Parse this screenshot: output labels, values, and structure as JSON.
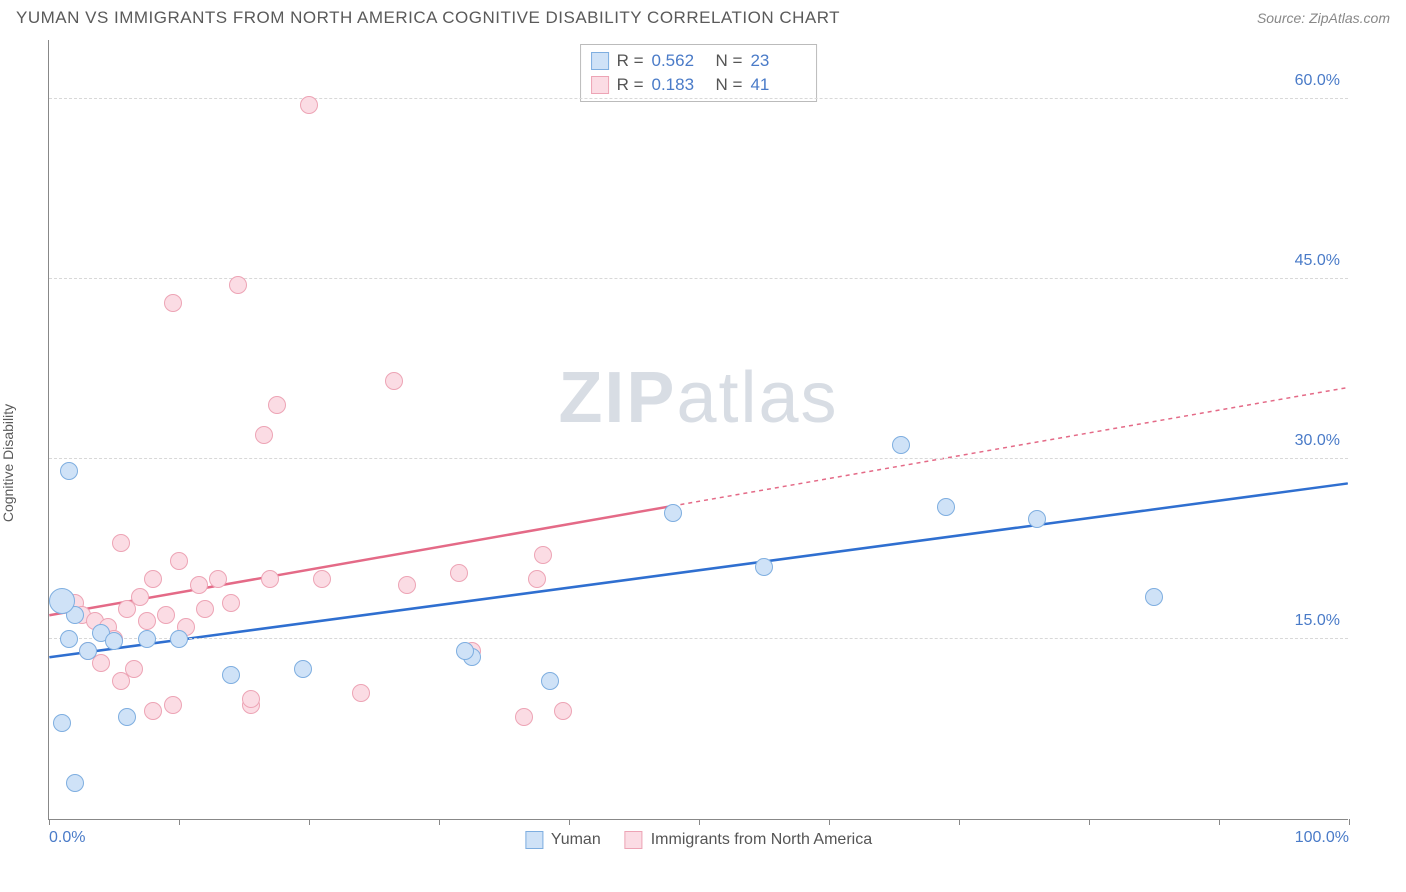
{
  "title": "YUMAN VS IMMIGRANTS FROM NORTH AMERICA COGNITIVE DISABILITY CORRELATION CHART",
  "source_label": "Source:",
  "source_name": "ZipAtlas.com",
  "ylabel": "Cognitive Disability",
  "watermark_a": "ZIP",
  "watermark_b": "atlas",
  "chart": {
    "type": "scatter",
    "xlim": [
      0,
      100
    ],
    "ylim": [
      0,
      65
    ],
    "x_ticks": [
      0,
      10,
      20,
      30,
      40,
      50,
      60,
      70,
      80,
      90,
      100
    ],
    "x_tick_labels": {
      "0": "0.0%",
      "100": "100.0%"
    },
    "y_ticks": [
      15,
      30,
      45,
      60
    ],
    "y_tick_labels": [
      "15.0%",
      "30.0%",
      "45.0%",
      "60.0%"
    ],
    "grid_color": "#d8d8d8",
    "axis_color": "#888888",
    "tick_label_color": "#4a7bc8",
    "series": [
      {
        "key": "yuman",
        "label": "Yuman",
        "color_fill": "#cfe2f7",
        "color_stroke": "#7eaee0",
        "line_color": "#2f6fd0",
        "line_dash_to_x": 100,
        "R": "0.562",
        "N": "23",
        "marker_r": 9,
        "regression": {
          "x1": 0,
          "y1": 13.5,
          "x2": 100,
          "y2": 28.0
        },
        "points": [
          {
            "x": 1.5,
            "y": 29.0
          },
          {
            "x": 2.0,
            "y": 3.0
          },
          {
            "x": 1.0,
            "y": 8.0
          },
          {
            "x": 1.5,
            "y": 15.0
          },
          {
            "x": 2.0,
            "y": 17.0
          },
          {
            "x": 3.0,
            "y": 14.0
          },
          {
            "x": 4.0,
            "y": 15.5
          },
          {
            "x": 5.0,
            "y": 14.8
          },
          {
            "x": 6.0,
            "y": 8.5
          },
          {
            "x": 7.5,
            "y": 15.0
          },
          {
            "x": 10.0,
            "y": 15.0
          },
          {
            "x": 14.0,
            "y": 12.0
          },
          {
            "x": 19.5,
            "y": 12.5
          },
          {
            "x": 32.5,
            "y": 13.5
          },
          {
            "x": 32.0,
            "y": 14.0
          },
          {
            "x": 38.5,
            "y": 11.5
          },
          {
            "x": 48.0,
            "y": 25.5
          },
          {
            "x": 55.0,
            "y": 21.0
          },
          {
            "x": 65.5,
            "y": 31.2
          },
          {
            "x": 69.0,
            "y": 26.0
          },
          {
            "x": 76.0,
            "y": 25.0
          },
          {
            "x": 85.0,
            "y": 18.5
          },
          {
            "x": 1.0,
            "y": 18.2,
            "r": 13
          }
        ]
      },
      {
        "key": "imm",
        "label": "Immigrants from North America",
        "color_fill": "#fbdce4",
        "color_stroke": "#eda4b5",
        "line_color": "#e46a87",
        "line_dash_to_x": 48,
        "R": "0.183",
        "N": "41",
        "marker_r": 9,
        "regression": {
          "x1": 0,
          "y1": 17.0,
          "x2": 100,
          "y2": 36.0
        },
        "points": [
          {
            "x": 20.0,
            "y": 59.5
          },
          {
            "x": 9.5,
            "y": 43.0
          },
          {
            "x": 14.5,
            "y": 44.5
          },
          {
            "x": 16.5,
            "y": 32.0
          },
          {
            "x": 17.5,
            "y": 34.5
          },
          {
            "x": 26.5,
            "y": 36.5
          },
          {
            "x": 2.0,
            "y": 18.0
          },
          {
            "x": 2.5,
            "y": 17.0
          },
          {
            "x": 3.0,
            "y": 14.0
          },
          {
            "x": 3.5,
            "y": 16.5
          },
          {
            "x": 4.0,
            "y": 13.0
          },
          {
            "x": 4.5,
            "y": 16.0
          },
          {
            "x": 5.0,
            "y": 15.0
          },
          {
            "x": 5.5,
            "y": 23.0
          },
          {
            "x": 5.5,
            "y": 11.5
          },
          {
            "x": 6.0,
            "y": 17.5
          },
          {
            "x": 6.5,
            "y": 12.5
          },
          {
            "x": 7.0,
            "y": 18.5
          },
          {
            "x": 7.5,
            "y": 16.5
          },
          {
            "x": 8.0,
            "y": 20.0
          },
          {
            "x": 8.0,
            "y": 9.0
          },
          {
            "x": 9.0,
            "y": 17.0
          },
          {
            "x": 9.5,
            "y": 9.5
          },
          {
            "x": 10.0,
            "y": 21.5
          },
          {
            "x": 10.5,
            "y": 16.0
          },
          {
            "x": 11.5,
            "y": 19.5
          },
          {
            "x": 12.0,
            "y": 17.5
          },
          {
            "x": 13.0,
            "y": 20.0
          },
          {
            "x": 14.0,
            "y": 18.0
          },
          {
            "x": 15.5,
            "y": 9.5
          },
          {
            "x": 15.5,
            "y": 10.0
          },
          {
            "x": 17.0,
            "y": 20.0
          },
          {
            "x": 21.0,
            "y": 20.0
          },
          {
            "x": 24.0,
            "y": 10.5
          },
          {
            "x": 27.5,
            "y": 19.5
          },
          {
            "x": 31.5,
            "y": 20.5
          },
          {
            "x": 32.5,
            "y": 14.0
          },
          {
            "x": 36.5,
            "y": 8.5
          },
          {
            "x": 38.0,
            "y": 22.0
          },
          {
            "x": 39.5,
            "y": 9.0
          },
          {
            "x": 37.5,
            "y": 20.0
          }
        ]
      }
    ]
  }
}
